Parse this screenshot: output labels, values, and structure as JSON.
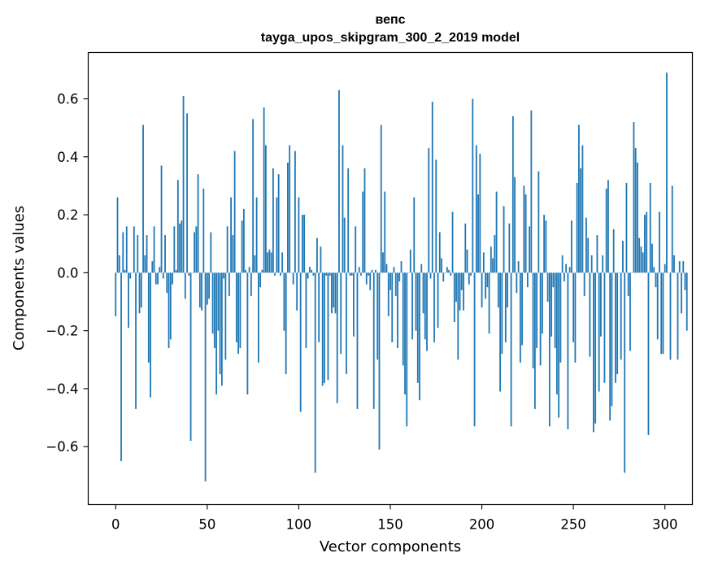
{
  "chart_data": {
    "type": "bar",
    "title": "вепс",
    "subtitle": "tayga_upos_skipgram_300_2_2019 model",
    "xlabel": "Vector components",
    "ylabel": "Components values",
    "xlim": [
      -15,
      315
    ],
    "ylim": [
      -0.8,
      0.76
    ],
    "xticks": [
      0,
      50,
      100,
      150,
      200,
      250,
      300
    ],
    "xtick_labels": [
      "0",
      "50",
      "100",
      "150",
      "200",
      "250",
      "300"
    ],
    "yticks": [
      -0.6,
      -0.4,
      -0.2,
      0.0,
      0.2,
      0.4,
      0.6
    ],
    "ytick_labels": [
      "−0.6",
      "−0.4",
      "−0.2",
      "0.0",
      "0.2",
      "0.4",
      "0.6"
    ],
    "grid": false,
    "bar_color": "#1f77b4",
    "series": [
      {
        "name": "вепс",
        "values": [
          -0.15,
          0.26,
          0.06,
          -0.65,
          0.14,
          0.01,
          0.16,
          -0.19,
          -0.02,
          0.0,
          0.16,
          -0.47,
          0.13,
          -0.14,
          -0.12,
          0.51,
          0.06,
          0.13,
          -0.31,
          -0.43,
          0.04,
          0.16,
          -0.04,
          -0.04,
          0.02,
          0.37,
          -0.02,
          0.13,
          -0.07,
          -0.26,
          -0.23,
          -0.04,
          0.16,
          0.01,
          0.32,
          0.17,
          0.18,
          0.61,
          -0.09,
          0.55,
          -0.01,
          -0.58,
          0.0,
          0.14,
          0.16,
          0.34,
          -0.12,
          -0.13,
          0.29,
          -0.72,
          -0.11,
          -0.09,
          0.14,
          -0.21,
          -0.26,
          -0.42,
          -0.2,
          -0.35,
          -0.39,
          -0.02,
          -0.3,
          0.16,
          -0.08,
          0.26,
          0.13,
          0.42,
          -0.24,
          -0.28,
          -0.26,
          0.18,
          0.22,
          0.01,
          -0.42,
          0.02,
          -0.08,
          0.53,
          0.06,
          0.26,
          -0.31,
          -0.05,
          0.01,
          0.57,
          0.44,
          0.07,
          0.08,
          0.07,
          0.36,
          -0.01,
          0.26,
          0.34,
          -0.01,
          0.07,
          -0.2,
          -0.35,
          0.38,
          0.44,
          0.0,
          -0.04,
          0.42,
          -0.13,
          0.26,
          -0.48,
          0.2,
          0.2,
          -0.26,
          -0.02,
          0.02,
          0.01,
          -0.01,
          -0.69,
          0.12,
          -0.24,
          0.09,
          -0.39,
          -0.38,
          -0.01,
          -0.37,
          -0.01,
          -0.14,
          -0.12,
          -0.14,
          -0.45,
          0.63,
          -0.28,
          0.44,
          0.19,
          -0.35,
          0.36,
          -0.01,
          -0.01,
          -0.22,
          0.16,
          -0.47,
          0.02,
          -0.01,
          0.28,
          0.36,
          -0.04,
          -0.01,
          -0.06,
          0.01,
          -0.47,
          0.01,
          -0.3,
          -0.61,
          0.51,
          0.07,
          0.28,
          0.03,
          -0.15,
          -0.06,
          -0.24,
          0.02,
          -0.08,
          -0.26,
          -0.03,
          0.04,
          -0.32,
          -0.42,
          -0.53,
          0.0,
          0.08,
          -0.23,
          0.26,
          -0.2,
          -0.38,
          -0.44,
          0.03,
          -0.14,
          -0.23,
          -0.27,
          0.43,
          -0.02,
          0.59,
          -0.24,
          0.39,
          -0.19,
          0.14,
          0.05,
          -0.03,
          0.0,
          0.02,
          0.01,
          -0.01,
          0.21,
          -0.17,
          -0.1,
          -0.3,
          -0.13,
          -0.06,
          -0.13,
          0.17,
          0.08,
          -0.04,
          -0.01,
          0.6,
          -0.53,
          0.44,
          0.27,
          0.41,
          -0.12,
          0.07,
          -0.09,
          -0.05,
          -0.21,
          0.09,
          0.05,
          0.13,
          0.28,
          -0.12,
          -0.41,
          -0.28,
          0.23,
          -0.24,
          -0.12,
          0.17,
          -0.53,
          0.54,
          0.33,
          -0.07,
          0.04,
          -0.31,
          -0.25,
          0.3,
          0.27,
          -0.05,
          0.16,
          0.56,
          -0.33,
          -0.47,
          -0.26,
          0.35,
          -0.32,
          -0.21,
          0.2,
          0.18,
          -0.1,
          -0.53,
          -0.22,
          -0.05,
          -0.26,
          -0.42,
          -0.5,
          -0.31,
          0.06,
          -0.03,
          0.03,
          -0.54,
          0.02,
          0.18,
          -0.24,
          -0.31,
          0.31,
          0.51,
          0.36,
          0.44,
          -0.08,
          0.19,
          0.12,
          -0.29,
          0.06,
          -0.55,
          -0.52,
          0.13,
          -0.41,
          -0.22,
          0.06,
          -0.38,
          0.29,
          0.32,
          -0.51,
          -0.46,
          0.15,
          -0.38,
          -0.35,
          0.0,
          -0.3,
          0.11,
          -0.69,
          0.31,
          -0.08,
          -0.27,
          0.0,
          0.52,
          0.43,
          0.38,
          0.12,
          0.09,
          0.07,
          0.2,
          0.21,
          -0.56,
          0.31,
          0.1,
          0.02,
          -0.05,
          -0.23,
          0.21,
          -0.28,
          -0.28,
          0.03,
          0.69,
          0.0,
          -0.3,
          0.3,
          0.06,
          0.0,
          -0.3,
          0.04,
          -0.14,
          0.04,
          -0.06,
          -0.2
        ]
      }
    ]
  }
}
